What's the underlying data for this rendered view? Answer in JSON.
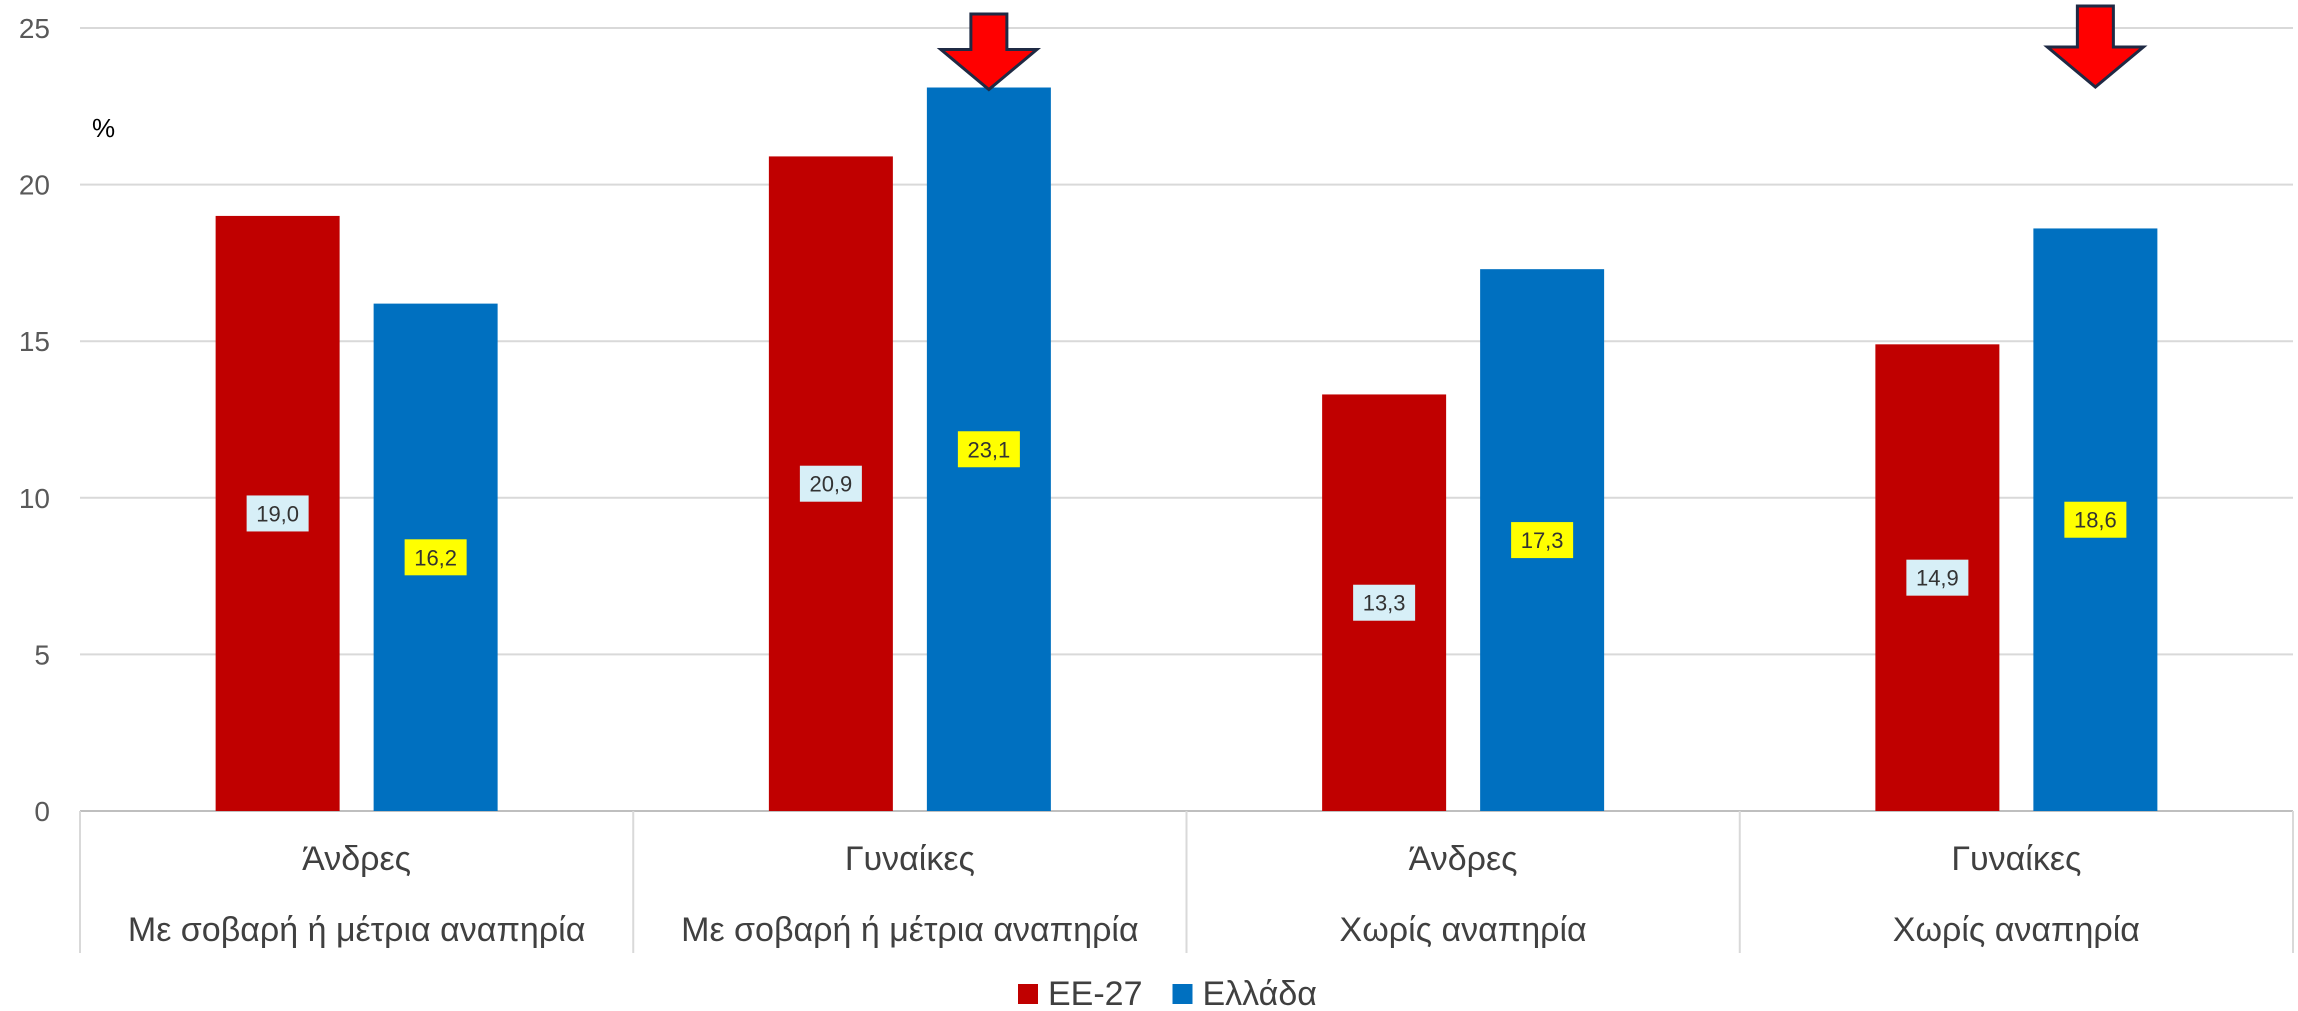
{
  "chart_data": {
    "type": "bar",
    "ylabel": "%",
    "ylim": [
      0,
      25
    ],
    "yticks": [
      0,
      5,
      10,
      15,
      20,
      25
    ],
    "grid": true,
    "legend_position": "bottom",
    "categories": [
      {
        "line1": "Άνδρες",
        "line2": "Με σοβαρή ή μέτρια αναπηρία"
      },
      {
        "line1": "Γυναίκες",
        "line2": "Με σοβαρή ή μέτρια αναπηρία"
      },
      {
        "line1": "Άνδρες",
        "line2": "Χωρίς αναπηρία"
      },
      {
        "line1": "Γυναίκες",
        "line2": "Χωρίς αναπηρία"
      }
    ],
    "series": [
      {
        "name": "ΕΕ-27",
        "color": "#C00000",
        "label_bg": "#D7EFF7",
        "values": [
          19.0,
          20.9,
          13.3,
          14.9
        ],
        "labels": [
          "19,0",
          "20,9",
          "13,3",
          "14,9"
        ]
      },
      {
        "name": "Ελλάδα",
        "color": "#0070C0",
        "label_bg": "#FFFF00",
        "values": [
          16.2,
          23.1,
          17.3,
          18.6
        ],
        "labels": [
          "16,2",
          "23,1",
          "17,3",
          "18,6"
        ]
      }
    ],
    "arrow_markers": {
      "icon": "down-arrow-icon",
      "color": "#FF0000",
      "category_indices": [
        1,
        3
      ],
      "series_index": 1
    }
  }
}
